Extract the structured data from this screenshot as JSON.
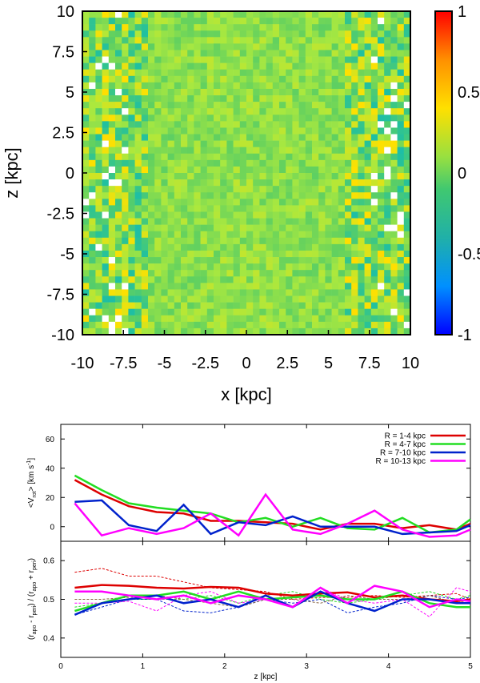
{
  "chart_data": [
    {
      "type": "heatmap",
      "xlabel": "x [kpc]",
      "ylabel": "z [kpc]",
      "xlim": [
        -10,
        10
      ],
      "ylim": [
        -10,
        10
      ],
      "xticks": [
        "-10",
        "-7.5",
        "-5",
        "-2.5",
        "0",
        "2.5",
        "5",
        "7.5",
        "10"
      ],
      "yticks": [
        "10",
        "7.5",
        "5",
        "2.5",
        "0",
        "-2.5",
        "-5",
        "-7.5",
        "-10"
      ],
      "colorbar": {
        "range": [
          -1,
          1
        ],
        "ticks": [
          "1",
          "0.5",
          "0",
          "-0.5",
          "-1"
        ],
        "colors": [
          "#0000ff",
          "#00a0ff",
          "#20c0a0",
          "#60d060",
          "#a8e840",
          "#ffe000",
          "#ff9000",
          "#ff0000"
        ]
      },
      "grid": false
    },
    {
      "type": "line",
      "ylabel": "<V_rot> [km s^-1]",
      "ylabel_parts": {
        "pre": "<V",
        "sub": "rot",
        "mid": "> [km s",
        "sup": "-1",
        "post": "]"
      },
      "xlim": [
        0,
        5
      ],
      "ylim": [
        -10,
        70
      ],
      "yticks": [
        "60",
        "40",
        "20",
        "0"
      ],
      "legend_position": "top-right",
      "x": [
        0.17,
        0.5,
        0.83,
        1.17,
        1.5,
        1.83,
        2.17,
        2.5,
        2.83,
        3.17,
        3.5,
        3.83,
        4.17,
        4.5,
        4.83,
        5.0
      ],
      "series": [
        {
          "name": "R = 1-4 kpc",
          "color": "#dd0000",
          "values": [
            32,
            22,
            14,
            10,
            9,
            4,
            4,
            3,
            2,
            -2,
            2,
            2,
            -1,
            1,
            -2,
            2
          ]
        },
        {
          "name": "R = 4-7 kpc",
          "color": "#22dd22",
          "values": [
            35,
            25,
            16,
            13,
            11,
            9,
            3,
            6,
            0,
            6,
            -1,
            -2,
            6,
            -4,
            -2,
            5
          ]
        },
        {
          "name": "R = 7-10 kpc",
          "color": "#0022cc",
          "values": [
            17,
            18,
            1,
            -3,
            15,
            -5,
            3,
            1,
            7,
            0,
            0,
            0,
            -5,
            -4,
            -3,
            1
          ]
        },
        {
          "name": "R = 10-13 kpc",
          "color": "#ff00ff",
          "values": [
            16,
            -6,
            -1,
            -5,
            -1,
            9,
            -6,
            22,
            -2,
            -5,
            2,
            11,
            -2,
            -7,
            -6,
            -2
          ]
        }
      ]
    },
    {
      "type": "line",
      "xlabel": "z [kpc]",
      "ylabel_parts": {
        "pre": "(r",
        "sub1": "apo",
        "m1": " - r",
        "sub2": "peri",
        "m2": ") / (r",
        "sub3": "apo",
        "m3": " + r",
        "sub4": "peri",
        "post": ")"
      },
      "xlim": [
        0,
        5
      ],
      "ylim": [
        0.35,
        0.65
      ],
      "yticks": [
        "0.6",
        "0.5",
        "0.4"
      ],
      "xticks": [
        "0",
        "1",
        "2",
        "3",
        "4",
        "5"
      ],
      "x": [
        0.17,
        0.5,
        0.83,
        1.17,
        1.5,
        1.83,
        2.17,
        2.5,
        2.83,
        3.17,
        3.5,
        3.83,
        4.17,
        4.5,
        4.83,
        5.0
      ],
      "series": [
        {
          "color": "#dd0000",
          "style": "solid",
          "values": [
            0.53,
            0.537,
            0.535,
            0.53,
            0.528,
            0.532,
            0.53,
            0.515,
            0.51,
            0.515,
            0.518,
            0.505,
            0.51,
            0.5,
            0.495,
            0.5
          ]
        },
        {
          "color": "#22dd22",
          "style": "solid",
          "values": [
            0.47,
            0.49,
            0.51,
            0.51,
            0.52,
            0.5,
            0.52,
            0.5,
            0.505,
            0.51,
            0.5,
            0.5,
            0.52,
            0.49,
            0.48,
            0.48
          ]
        },
        {
          "color": "#0022cc",
          "style": "solid",
          "values": [
            0.46,
            0.49,
            0.5,
            0.51,
            0.49,
            0.5,
            0.48,
            0.51,
            0.48,
            0.52,
            0.49,
            0.47,
            0.5,
            0.5,
            0.49,
            0.49
          ]
        },
        {
          "color": "#ff00ff",
          "style": "solid",
          "values": [
            0.52,
            0.52,
            0.51,
            0.5,
            0.51,
            0.49,
            0.51,
            0.5,
            0.48,
            0.53,
            0.49,
            0.535,
            0.52,
            0.48,
            0.5,
            0.495
          ]
        },
        {
          "color": "#dd0000",
          "style": "dashed",
          "values": [
            0.57,
            0.58,
            0.56,
            0.56,
            0.545,
            0.53,
            0.525,
            0.52,
            0.5,
            0.505,
            0.505,
            0.51,
            0.505,
            0.51,
            0.515,
            0.5
          ]
        },
        {
          "color": "#22dd22",
          "style": "dashed",
          "values": [
            0.48,
            0.49,
            0.5,
            0.5,
            0.5,
            0.51,
            0.49,
            0.51,
            0.52,
            0.5,
            0.49,
            0.5,
            0.51,
            0.52,
            0.5,
            0.51
          ]
        },
        {
          "color": "#0022cc",
          "style": "dashed",
          "values": [
            0.46,
            0.48,
            0.5,
            0.5,
            0.47,
            0.465,
            0.48,
            0.5,
            0.49,
            0.5,
            0.465,
            0.48,
            0.49,
            0.51,
            0.5,
            0.505
          ]
        },
        {
          "color": "#ff00ff",
          "style": "dashed",
          "values": [
            0.49,
            0.49,
            0.495,
            0.47,
            0.51,
            0.52,
            0.49,
            0.5,
            0.48,
            0.53,
            0.5,
            0.49,
            0.5,
            0.455,
            0.53,
            0.52
          ]
        },
        {
          "color": "#886644",
          "style": "dashed",
          "values": [
            0.5,
            0.5,
            0.505,
            0.51,
            0.5,
            0.49,
            0.48,
            0.5,
            0.5,
            0.49,
            0.51,
            0.5,
            0.5,
            0.51,
            0.49,
            0.5
          ]
        }
      ]
    }
  ]
}
